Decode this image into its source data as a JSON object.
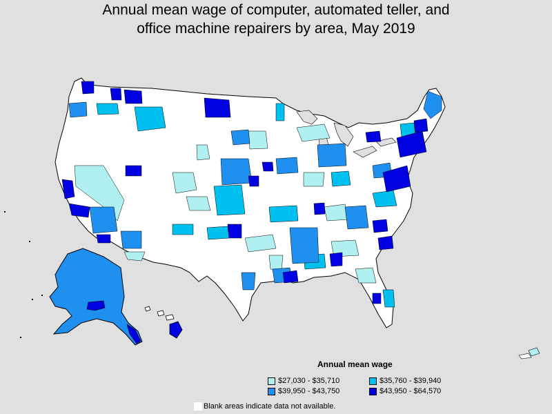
{
  "title_line1": "Annual mean wage of computer, automated teller, and",
  "title_line2": "office machine repairers by area, May 2019",
  "legend": {
    "title": "Annual mean wage",
    "items": [
      {
        "label": "$27,030 - $35,710",
        "color": "#b0f0f0"
      },
      {
        "label": "$35,760 - $39,940",
        "color": "#00c0f0"
      },
      {
        "label": "$39,950 - $43,750",
        "color": "#2090f0"
      },
      {
        "label": "$43,950 - $64,570",
        "color": "#0000e0"
      }
    ]
  },
  "note": "Blank areas indicate data not available.",
  "colors": {
    "background": "#e0e0e0",
    "no_data": "#ffffff",
    "border": "#000000"
  }
}
